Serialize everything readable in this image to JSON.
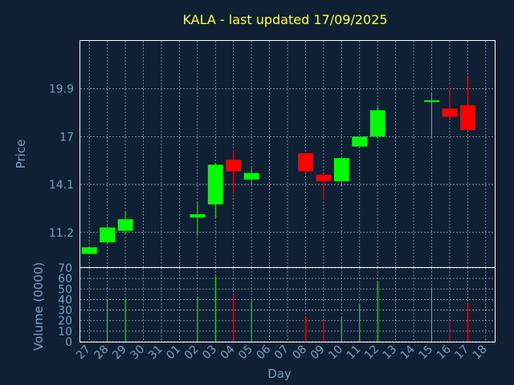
{
  "chart_data": {
    "type": "candlestick",
    "title": "KALA - last updated 17/09/2025",
    "xlabel": "Day",
    "ylabel_price": "Price",
    "ylabel_volume": "Volume (0000)",
    "grid": true,
    "categories": [
      "27",
      "28",
      "29",
      "30",
      "31",
      "01",
      "02",
      "03",
      "04",
      "05",
      "06",
      "07",
      "08",
      "09",
      "10",
      "11",
      "12",
      "13",
      "14",
      "15",
      "16",
      "17",
      "18"
    ],
    "price_ticks": [
      "11.2",
      "14.1",
      "17",
      "19.9"
    ],
    "price_tick_values": [
      11.2,
      14.1,
      17,
      19.9
    ],
    "price_ylim": [
      9.1,
      22.8
    ],
    "volume_ticks": [
      "0",
      "10",
      "20",
      "30",
      "40",
      "50",
      "60",
      "70"
    ],
    "volume_tick_values": [
      0,
      10,
      20,
      30,
      40,
      50,
      60,
      70
    ],
    "volume_ylim": [
      0,
      70
    ],
    "up_color": "#00ff00",
    "down_color": "#ff0000",
    "candles": [
      {
        "x": "27",
        "open": 9.9,
        "close": 10.3,
        "high": 10.3,
        "low": 9.9,
        "volume": 0
      },
      {
        "x": "28",
        "open": 10.6,
        "close": 11.5,
        "high": 11.6,
        "low": 10.5,
        "volume": 40
      },
      {
        "x": "29",
        "open": 11.3,
        "close": 12.0,
        "high": 12.5,
        "low": 11.1,
        "volume": 40
      },
      {
        "x": "02",
        "open": 12.1,
        "close": 12.3,
        "high": 13.0,
        "low": 11.0,
        "volume": 43
      },
      {
        "x": "03",
        "open": 12.9,
        "close": 15.3,
        "high": 15.4,
        "low": 12.1,
        "volume": 62
      },
      {
        "x": "04",
        "open": 15.6,
        "close": 14.9,
        "high": 16.2,
        "low": 13.6,
        "volume": 45
      },
      {
        "x": "05",
        "open": 14.4,
        "close": 14.8,
        "high": 15.1,
        "low": 14.1,
        "volume": 38
      },
      {
        "x": "08",
        "open": 16.0,
        "close": 14.9,
        "high": 16.0,
        "low": 14.8,
        "volume": 24
      },
      {
        "x": "09",
        "open": 14.7,
        "close": 14.3,
        "high": 14.7,
        "low": 13.2,
        "volume": 20
      },
      {
        "x": "10",
        "open": 14.3,
        "close": 15.7,
        "high": 15.7,
        "low": 14.0,
        "volume": 23
      },
      {
        "x": "11",
        "open": 16.4,
        "close": 17.0,
        "high": 17.0,
        "low": 16.4,
        "volume": 35
      },
      {
        "x": "12",
        "open": 17.0,
        "close": 18.6,
        "high": 18.8,
        "low": 17.0,
        "volume": 57
      },
      {
        "x": "15",
        "open": 19.1,
        "close": 19.2,
        "high": 19.6,
        "low": 17.0,
        "volume": 51
      },
      {
        "x": "16",
        "open": 18.7,
        "close": 18.2,
        "high": 20.1,
        "low": 18.1,
        "volume": 20
      },
      {
        "x": "17",
        "open": 18.9,
        "close": 17.4,
        "high": 20.6,
        "low": 17.4,
        "volume": 36
      }
    ]
  }
}
